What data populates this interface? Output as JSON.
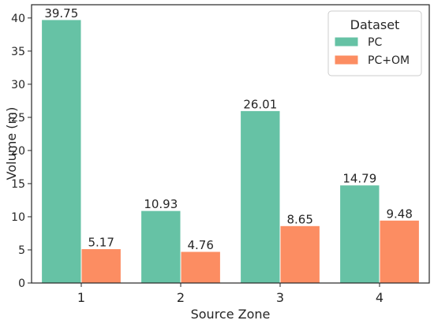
{
  "chart_data": {
    "type": "bar",
    "categories": [
      "1",
      "2",
      "3",
      "4"
    ],
    "series": [
      {
        "name": "PC",
        "color": "#66c2a5",
        "values": [
          39.75,
          10.93,
          26.01,
          14.79
        ],
        "labels": [
          "39.75",
          "10.93",
          "26.01",
          "14.79"
        ]
      },
      {
        "name": "PC+OM",
        "color": "#fc8d62",
        "values": [
          5.17,
          4.76,
          8.65,
          9.48
        ],
        "labels": [
          "5.17",
          "4.76",
          "8.65",
          "9.48"
        ]
      }
    ],
    "xlabel": "Source Zone",
    "ylabel": "Volume (m)",
    "ylim": [
      0,
      42
    ],
    "yticks": [
      0,
      5,
      10,
      15,
      20,
      25,
      30,
      35,
      40
    ],
    "legend": {
      "title": "Dataset",
      "placement": "top-right"
    },
    "grid": false
  }
}
